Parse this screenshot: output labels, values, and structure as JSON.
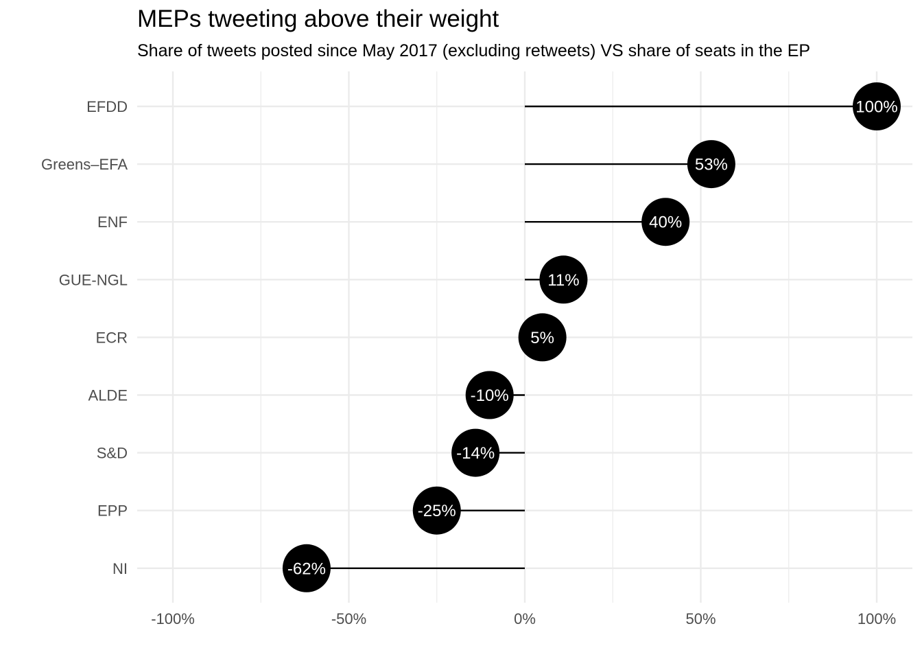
{
  "chart_data": {
    "type": "lollipop",
    "title": "MEPs tweeting above their weight",
    "subtitle": "Share of tweets posted since May 2017 (excluding retweets) VS share of seats in the EP",
    "xlabel": "",
    "ylabel": "",
    "xlim": [
      -110,
      110
    ],
    "x_ticks": [
      -100,
      -50,
      0,
      50,
      100
    ],
    "x_tick_labels": [
      "-100%",
      "-50%",
      "0%",
      "50%",
      "100%"
    ],
    "x_minor_ticks": [
      -75,
      -25,
      25,
      75
    ],
    "grid": true,
    "legend": "none",
    "categories": [
      "EFDD",
      "Greens–EFA",
      "ENF",
      "GUE-NGL",
      "ECR",
      "ALDE",
      "S&D",
      "EPP",
      "NI"
    ],
    "values": [
      100,
      53,
      40,
      11,
      5,
      -10,
      -14,
      -25,
      -62
    ],
    "value_labels": [
      "100%",
      "53%",
      "40%",
      "11%",
      "5%",
      "-10%",
      "-14%",
      "-25%",
      "-62%"
    ],
    "colors": {
      "point": "#000000",
      "stem": "#000000",
      "point_label": "#ffffff",
      "grid": "#ebebeb",
      "tick_label": "#4d4d4d"
    }
  }
}
